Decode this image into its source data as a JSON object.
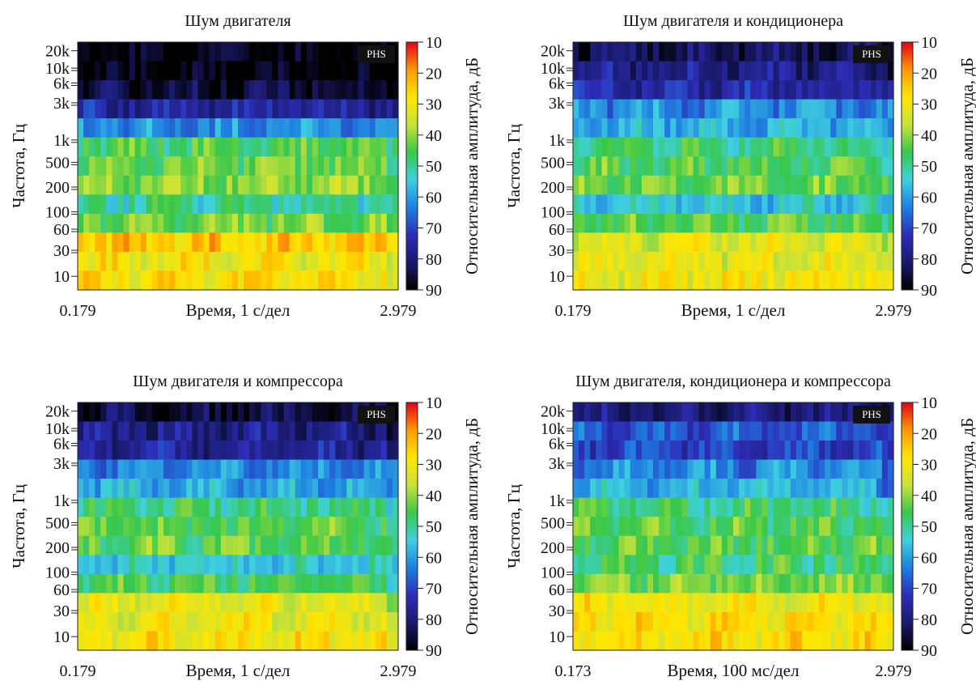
{
  "figure": {
    "colormap": [
      "#000000",
      "#1a1a6e",
      "#2d2db8",
      "#1f7fe0",
      "#3fd0e0",
      "#39c84a",
      "#c8e23a",
      "#ffe600",
      "#ff9a00",
      "#e0001a"
    ],
    "cbar_ticks": [
      "10",
      "20",
      "30",
      "40",
      "50",
      "60",
      "70",
      "80",
      "90"
    ],
    "cbar_label": "Относительная амплитуда, дБ",
    "y_ticks": [
      "20k",
      "10k",
      "6k",
      "3k",
      "1k",
      "500",
      "200",
      "100",
      "60",
      "30",
      "10"
    ],
    "badge": "PHS"
  },
  "panels": [
    {
      "title": "Шум двигателя",
      "ylabel": "Частота, Гц",
      "xlabel": "Время, 1 с/дел",
      "x_start": "0.179",
      "x_end": "2.979"
    },
    {
      "title": "Шум двигателя и кондиционера",
      "ylabel": "Частота, Гц",
      "xlabel": "Время, 1 с/дел",
      "x_start": "0.179",
      "x_end": "2.979"
    },
    {
      "title": "Шум двигателя и компрессора",
      "ylabel": "Частота, Гц",
      "xlabel": "Время, 1 с/дел",
      "x_start": "0.179",
      "x_end": "2.979"
    },
    {
      "title": "Шум двигателя, кондиционера и компрессора",
      "ylabel": "Частота, Гц",
      "xlabel": "Время, 100 мс/дел",
      "x_start": "0.173",
      "x_end": "2.979"
    }
  ],
  "chart_data": [
    {
      "type": "heatmap",
      "title": "Шум двигателя",
      "xlabel": "Время, 1 с/дел",
      "ylabel": "Частота, Гц",
      "xlim": [
        0.179,
        2.979
      ],
      "y_scale": "log",
      "y_ticks": [
        "20k",
        "10k",
        "6k",
        "3k",
        "1k",
        "500",
        "200",
        "100",
        "60",
        "30",
        "10"
      ],
      "colorbar": {
        "label": "Относительная амплитуда, дБ",
        "range": [
          10,
          90
        ]
      },
      "rows": [
        {
          "band": "20k",
          "db": 90
        },
        {
          "band": "10k",
          "db": 90
        },
        {
          "band": "6k",
          "db": 85
        },
        {
          "band": "3k",
          "db": 75
        },
        {
          "band": "1.5k",
          "db": 62
        },
        {
          "band": "1k",
          "db": 45
        },
        {
          "band": "500",
          "db": 42
        },
        {
          "band": "200",
          "db": 40
        },
        {
          "band": "100",
          "db": 50
        },
        {
          "band": "60",
          "db": 42
        },
        {
          "band": "30",
          "db": 25
        },
        {
          "band": "20",
          "db": 30
        },
        {
          "band": "10",
          "db": 28
        }
      ]
    },
    {
      "type": "heatmap",
      "title": "Шум двигателя и кондиционера",
      "xlabel": "Время, 1 с/дел",
      "ylabel": "Частота, Гц",
      "xlim": [
        0.179,
        2.979
      ],
      "y_scale": "log",
      "y_ticks": [
        "20k",
        "10k",
        "6k",
        "3k",
        "1k",
        "500",
        "200",
        "100",
        "60",
        "30",
        "10"
      ],
      "colorbar": {
        "label": "Относительная амплитуда, дБ",
        "range": [
          10,
          90
        ]
      },
      "rows": [
        {
          "band": "20k",
          "db": 82
        },
        {
          "band": "10k",
          "db": 78
        },
        {
          "band": "6k",
          "db": 75
        },
        {
          "band": "3k",
          "db": 62
        },
        {
          "band": "1.5k",
          "db": 58
        },
        {
          "band": "1k",
          "db": 48
        },
        {
          "band": "500",
          "db": 45
        },
        {
          "band": "200",
          "db": 43
        },
        {
          "band": "100",
          "db": 55
        },
        {
          "band": "60",
          "db": 45
        },
        {
          "band": "30",
          "db": 33
        },
        {
          "band": "20",
          "db": 32
        },
        {
          "band": "10",
          "db": 30
        }
      ]
    },
    {
      "type": "heatmap",
      "title": "Шум двигателя и компрессора",
      "xlabel": "Время, 1 с/дел",
      "ylabel": "Частота, Гц",
      "xlim": [
        0.179,
        2.979
      ],
      "y_scale": "log",
      "y_ticks": [
        "20k",
        "10k",
        "6k",
        "3k",
        "1k",
        "500",
        "200",
        "100",
        "60",
        "30",
        "10"
      ],
      "colorbar": {
        "label": "Относительная амплитуда, дБ",
        "range": [
          10,
          90
        ]
      },
      "rows": [
        {
          "band": "20k",
          "db": 85
        },
        {
          "band": "10k",
          "db": 78
        },
        {
          "band": "6k",
          "db": 76
        },
        {
          "band": "3k",
          "db": 62
        },
        {
          "band": "1.5k",
          "db": 58
        },
        {
          "band": "1k",
          "db": 48
        },
        {
          "band": "500",
          "db": 45
        },
        {
          "band": "200",
          "db": 44
        },
        {
          "band": "100",
          "db": 55
        },
        {
          "band": "60",
          "db": 45
        },
        {
          "band": "30",
          "db": 32
        },
        {
          "band": "20",
          "db": 31
        },
        {
          "band": "10",
          "db": 29
        }
      ]
    },
    {
      "type": "heatmap",
      "title": "Шум двигателя, кондиционера и компрессора",
      "xlabel": "Время, 100 мс/дел",
      "ylabel": "Частота, Гц",
      "xlim": [
        0.173,
        2.979
      ],
      "y_scale": "log",
      "y_ticks": [
        "20k",
        "10k",
        "6k",
        "3k",
        "1k",
        "500",
        "200",
        "100",
        "60",
        "30",
        "10"
      ],
      "colorbar": {
        "label": "Относительная амплитуда, дБ",
        "range": [
          10,
          90
        ]
      },
      "rows": [
        {
          "band": "20k",
          "db": 80
        },
        {
          "band": "10k",
          "db": 68
        },
        {
          "band": "6k",
          "db": 70
        },
        {
          "band": "3k",
          "db": 62
        },
        {
          "band": "1.5k",
          "db": 58
        },
        {
          "band": "1k",
          "db": 48
        },
        {
          "band": "500",
          "db": 45
        },
        {
          "band": "200",
          "db": 44
        },
        {
          "band": "100",
          "db": 47
        },
        {
          "band": "60",
          "db": 42
        },
        {
          "band": "30",
          "db": 30
        },
        {
          "band": "20",
          "db": 28
        },
        {
          "band": "10",
          "db": 28
        }
      ]
    }
  ]
}
